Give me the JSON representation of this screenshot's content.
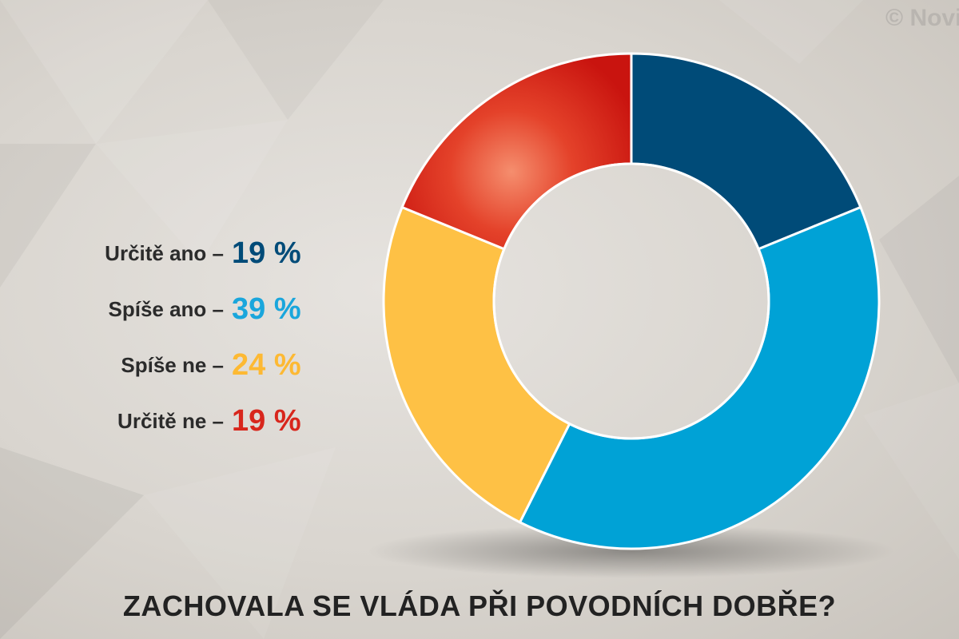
{
  "watermark": "© Novi",
  "chart_data": {
    "type": "pie",
    "title": "ZACHOVALA SE VLÁDA PŘI POVODNÍCH DOBŘE?",
    "categories": [
      "Určitě ano",
      "Spíše ano",
      "Spíše ne",
      "Určitě ne"
    ],
    "values": [
      19,
      39,
      24,
      19
    ],
    "value_labels": [
      "19 %",
      "39 %",
      "24 %",
      "19 %"
    ],
    "colors": [
      "#004b78",
      "#00a2d6",
      "#fec145",
      "#e0301e"
    ],
    "donut": true,
    "legend_placement": "left"
  },
  "legend": [
    {
      "label": "Určitě ano –",
      "value": "19 %"
    },
    {
      "label": "Spíše ano –",
      "value": "39 %"
    },
    {
      "label": "Spíše ne –",
      "value": "24 %"
    },
    {
      "label": "Určitě ne –",
      "value": "19 %"
    }
  ]
}
